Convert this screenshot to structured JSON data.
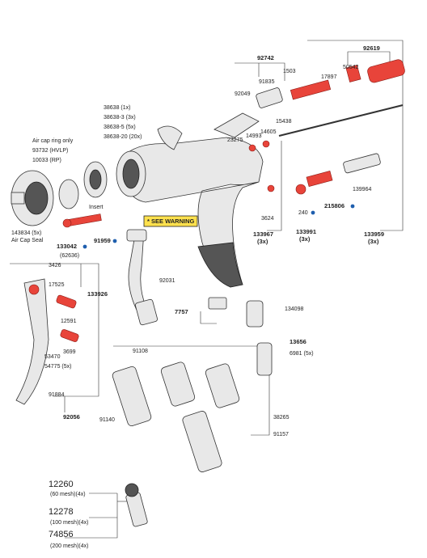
{
  "labels": [
    "92742",
    "1503",
    "91835",
    "17897",
    "92049",
    "92619",
    "50542",
    "15438",
    "23275",
    "14993",
    "14605",
    "38638 (1x)",
    "38638-3 (3x)",
    "38638-5 (5x)",
    "38638-20 (20x)",
    "Air cap ring only",
    "93732 (HVLP)",
    "10033 (RP)",
    "143834 (5x)",
    "Air Cap Seal",
    "Insert",
    "* SEE WARNING",
    "133042",
    "(62636)",
    "91959",
    "3624",
    "133967",
    "(3x)",
    "240",
    "133991",
    "(3x)",
    "215806",
    "139964",
    "133959",
    "(3x)",
    "3426",
    "17525",
    "133926",
    "12591",
    "3699",
    "53470",
    "54775 (5x)",
    "91884",
    "92056",
    "92031",
    "7757",
    "134098",
    "13656",
    "6981 (5x)",
    "91108",
    "91140",
    "38265",
    "91157",
    "12260",
    "(60 mesh)(4x)",
    "12278",
    "(100 mesh)(4x)",
    "74856",
    "(200 mesh)(4x)"
  ]
}
